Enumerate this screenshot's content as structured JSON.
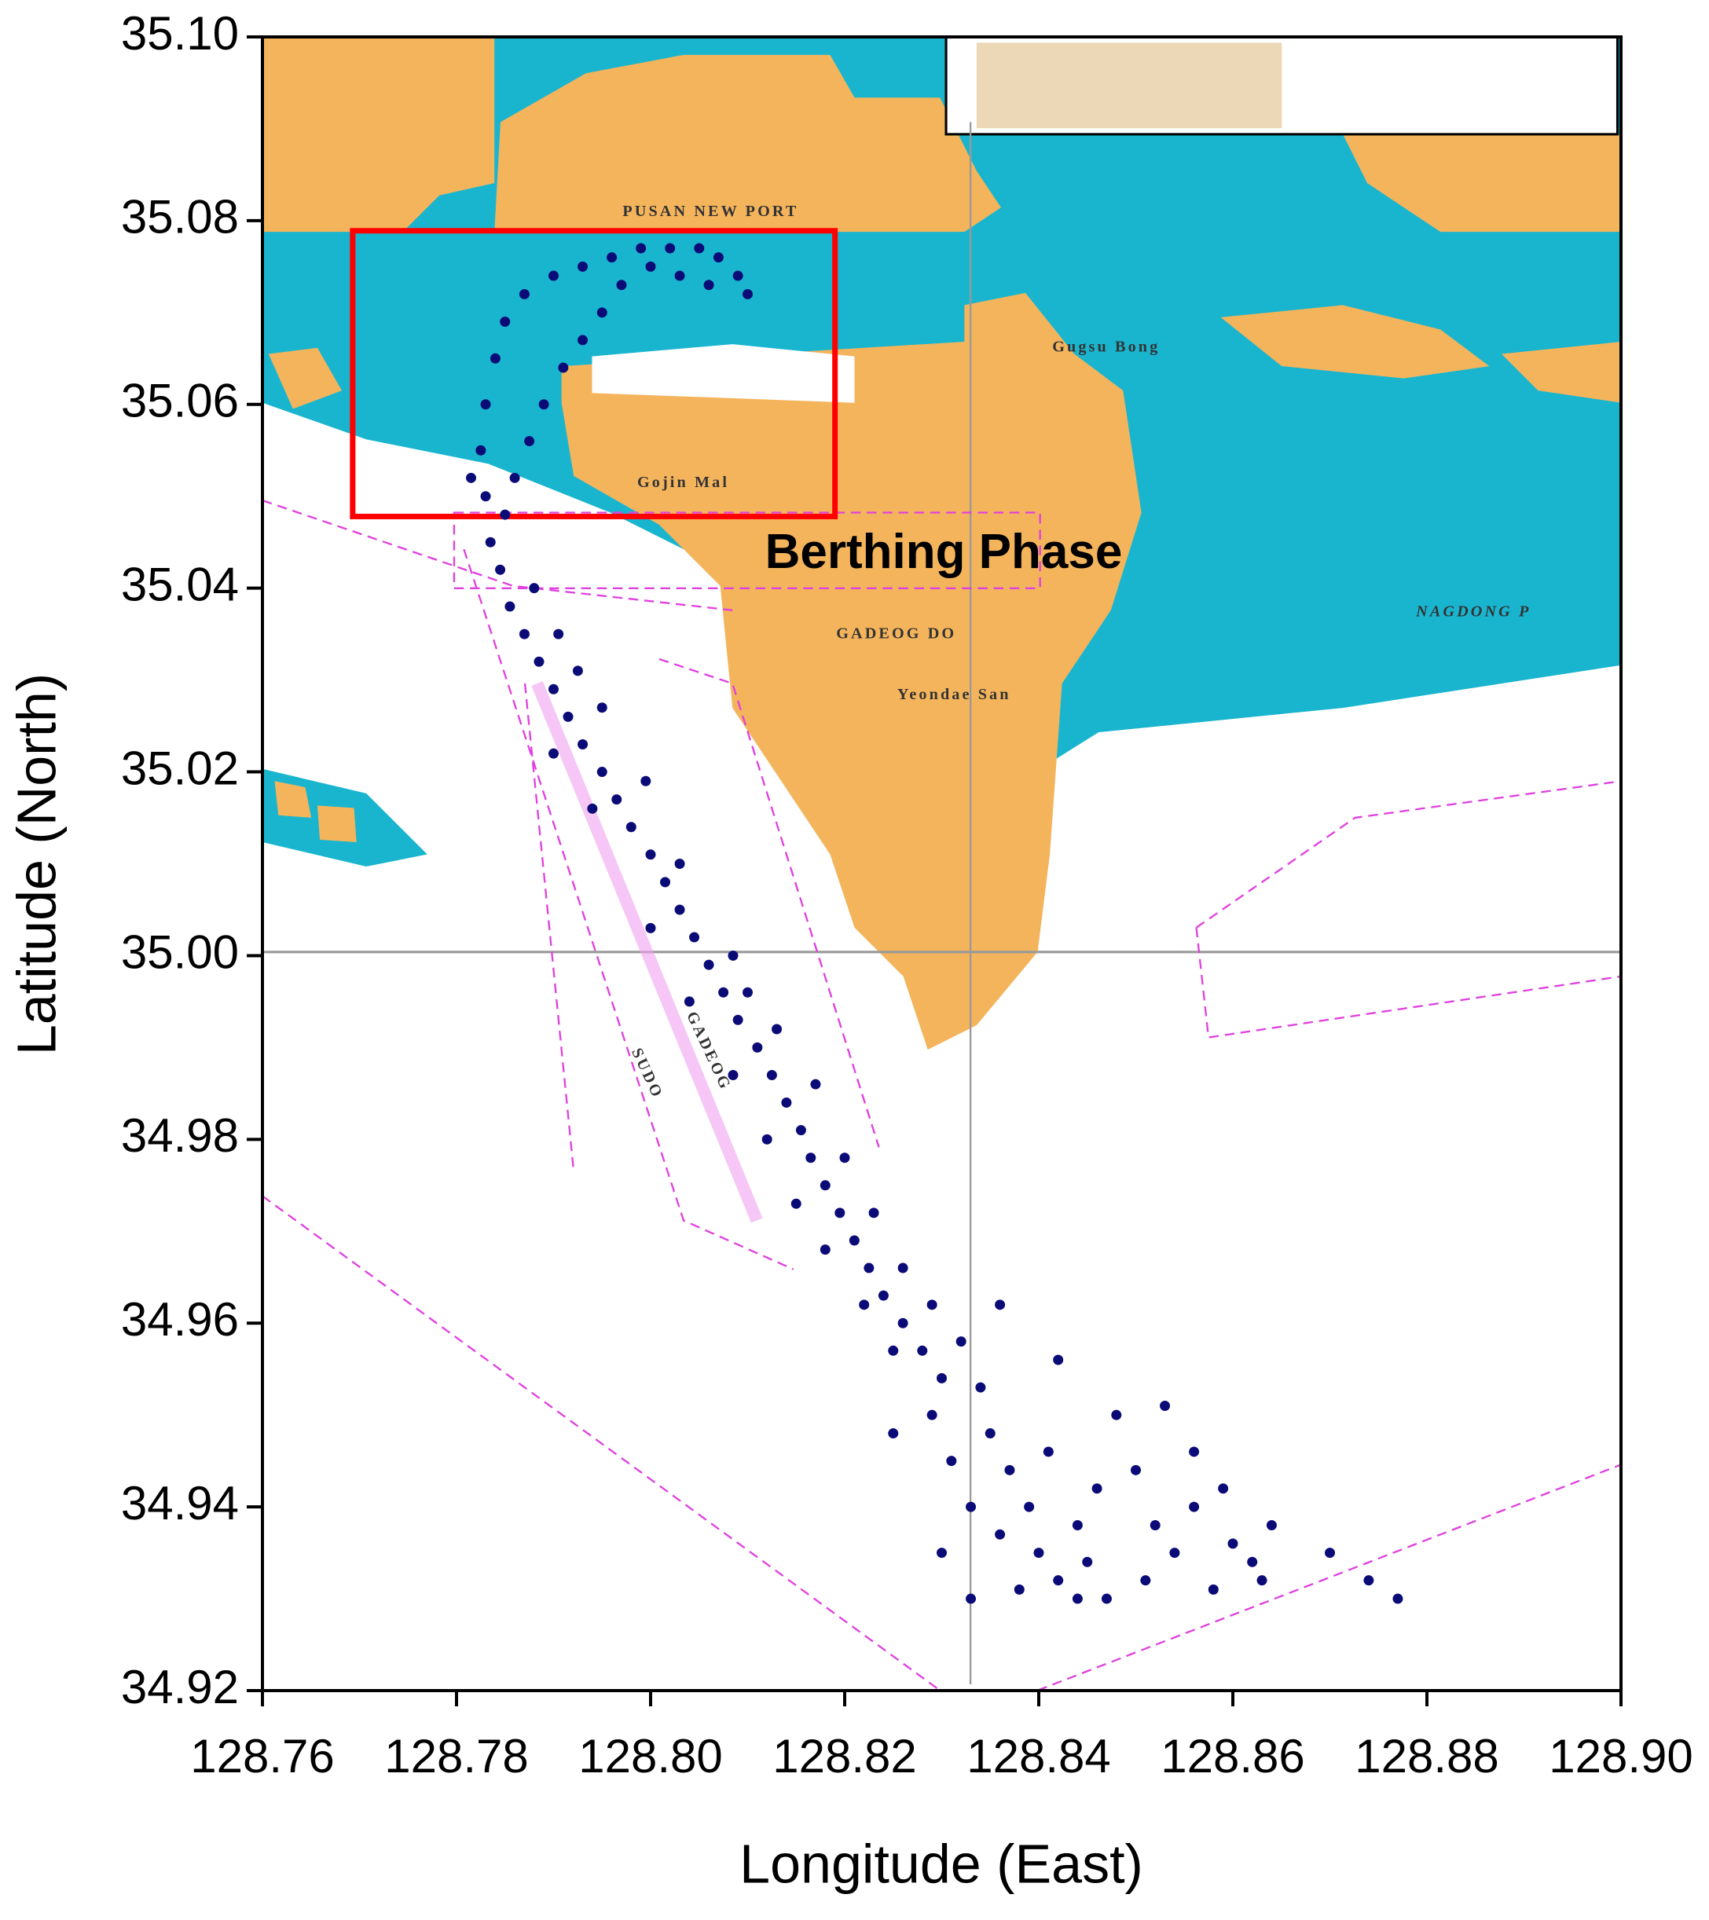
{
  "chart_data": {
    "type": "scatter",
    "x_label": "Longitude (East)",
    "y_label": "Latitude (North)",
    "xlim": [
      128.76,
      128.9
    ],
    "xticks": [
      128.76,
      128.78,
      {
        "value": 128.8,
        "label": "128.80"
      },
      128.82,
      128.84,
      128.86,
      128.88,
      {
        "value": 128.9,
        "label": "128.90"
      }
    ],
    "ylim": [
      34.92,
      35.1
    ],
    "yticks": [
      34.92,
      34.94,
      34.96,
      34.98,
      {
        "value": 35,
        "label": "35.00"
      },
      35.02,
      35.04,
      35.06,
      35.08,
      {
        "value": 35.1,
        "label": "35.10"
      }
    ],
    "annotations": [
      {
        "text": "Berthing Phase",
        "x": 128.8302,
        "y": 35.0436
      }
    ],
    "highlight_box": {
      "xlim": [
        128.7693,
        128.819
      ],
      "ylim": [
        35.0478,
        35.0789
      ],
      "color": "#ff0000"
    },
    "map_labels": [
      "PUSAN NEW PORT",
      "GADEOG DO",
      "NAGDONG P",
      "Gugsu Bong",
      "Gojin Mal",
      "Yeondae San",
      "SUDO",
      "GADEOG"
    ],
    "series": [
      {
        "color": "#0b0b78",
        "x": [
          128.7835,
          128.783,
          128.7825,
          128.783,
          128.784,
          128.785,
          128.787,
          128.79,
          128.793,
          128.796,
          128.799,
          128.802,
          128.805,
          128.807,
          128.809,
          128.81,
          128.806,
          128.803,
          128.8,
          128.797,
          128.795,
          128.793,
          128.791,
          128.789,
          128.7875,
          128.786,
          128.785,
          128.7815,
          128.7845,
          128.7855,
          128.787,
          128.7885,
          128.79,
          128.7915,
          128.793,
          128.795,
          128.7965,
          128.798,
          128.8,
          128.8015,
          128.803,
          128.8045,
          128.806,
          128.8075,
          128.809,
          128.811,
          128.8125,
          128.814,
          128.8155,
          128.8165,
          128.818,
          128.8195,
          128.821,
          128.8225,
          128.824,
          128.826,
          128.828,
          128.83,
          128.788,
          128.7905,
          128.7925,
          128.795,
          128.79,
          128.794,
          128.7995,
          128.803,
          128.8,
          128.8085,
          128.804,
          128.81,
          128.813,
          128.8085,
          128.817,
          128.812,
          128.82,
          128.815,
          128.823,
          128.818,
          128.826,
          128.822,
          128.829,
          128.825,
          128.832,
          128.834,
          128.829,
          128.831,
          128.835,
          128.837,
          128.833,
          128.836,
          128.839,
          128.841,
          128.84,
          128.842,
          128.838,
          128.844,
          128.846,
          128.845,
          128.847,
          128.848,
          128.85,
          128.852,
          128.851,
          128.854,
          128.856,
          128.858,
          128.86,
          128.862,
          128.864,
          128.863,
          128.87,
          128.874,
          128.877,
          128.833,
          128.83,
          128.836,
          128.842,
          128.853,
          128.856,
          128.859,
          128.844,
          128.825
        ],
        "y": [
          35.045,
          35.05,
          35.055,
          35.06,
          35.065,
          35.069,
          35.072,
          35.074,
          35.075,
          35.076,
          35.077,
          35.077,
          35.077,
          35.076,
          35.074,
          35.072,
          35.073,
          35.074,
          35.075,
          35.073,
          35.07,
          35.067,
          35.064,
          35.06,
          35.056,
          35.052,
          35.048,
          35.052,
          35.042,
          35.038,
          35.035,
          35.032,
          35.029,
          35.026,
          35.023,
          35.02,
          35.017,
          35.014,
          35.011,
          35.008,
          35.005,
          35.002,
          34.999,
          34.996,
          34.993,
          34.99,
          34.987,
          34.984,
          34.981,
          34.978,
          34.975,
          34.972,
          34.969,
          34.966,
          34.963,
          34.96,
          34.957,
          34.954,
          35.04,
          35.035,
          35.031,
          35.027,
          35.022,
          35.016,
          35.019,
          35.01,
          35.003,
          35,
          34.995,
          34.996,
          34.992,
          34.987,
          34.986,
          34.98,
          34.978,
          34.973,
          34.972,
          34.968,
          34.966,
          34.962,
          34.962,
          34.957,
          34.958,
          34.953,
          34.95,
          34.945,
          34.948,
          34.944,
          34.94,
          34.937,
          34.94,
          34.946,
          34.935,
          34.932,
          34.931,
          34.938,
          34.942,
          34.934,
          34.93,
          34.95,
          34.944,
          34.938,
          34.932,
          34.935,
          34.94,
          34.931,
          34.936,
          34.934,
          34.938,
          34.932,
          34.935,
          34.932,
          34.93,
          34.93,
          34.935,
          34.962,
          34.956,
          34.951,
          34.946,
          34.942,
          34.93,
          34.948
        ]
      }
    ]
  }
}
